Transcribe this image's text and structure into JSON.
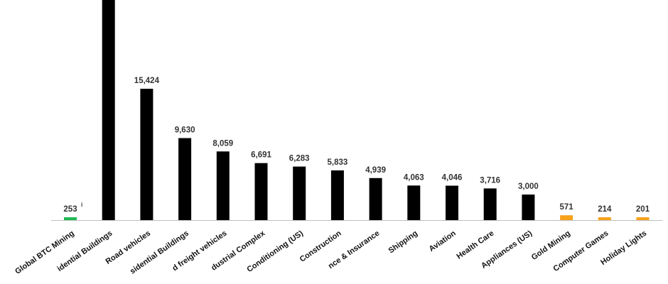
{
  "chart_data": {
    "type": "bar",
    "categories": [
      "Global BTC Mining",
      "Residential Buildings",
      "Road vehicles",
      "Non-Residential Buildings",
      "Road freight vehicles",
      "Military Industrial Complex",
      "Air Conditioning (US)",
      "Construction",
      "Finance & Insurance",
      "Shipping",
      "Aviation",
      "Health Care",
      "Appliances (US)",
      "Gold Mining",
      "Computer Games",
      "Holiday Lights"
    ],
    "values": [
      253,
      26000,
      15424,
      9630,
      8059,
      6691,
      6283,
      5833,
      4939,
      4063,
      4046,
      3716,
      3000,
      571,
      214,
      201
    ],
    "value_labels": [
      "253",
      "",
      "15,424",
      "9,630",
      "8,059",
      "6,691",
      "6,283",
      "5,833",
      "4,939",
      "4,063",
      "4,046",
      "3,716",
      "3,000",
      "571",
      "214",
      "201"
    ],
    "category_labels": [
      "Global BTC Mining",
      "idential Buildings",
      "Road vehicles",
      "sidential Buildings",
      "d freight vehicles",
      "dustrial Complex",
      "Conditioning (US)",
      "Construction",
      "nce & Insurance",
      "Shipping",
      "Aviation",
      "Health Care",
      "Appliances (US)",
      "Gold Mining",
      "Computer Games",
      "Holiday Lights"
    ],
    "bar_colors": [
      "#1db954",
      "#000000",
      "#000000",
      "#000000",
      "#000000",
      "#000000",
      "#000000",
      "#000000",
      "#000000",
      "#000000",
      "#000000",
      "#000000",
      "#000000",
      "#f7a11a",
      "#f7a11a",
      "#f7a11a"
    ],
    "annotations": [
      {
        "category": "Global BTC Mining",
        "text": "i"
      }
    ],
    "title": "",
    "xlabel": "",
    "ylabel": "",
    "grid": false,
    "legend": "none"
  }
}
